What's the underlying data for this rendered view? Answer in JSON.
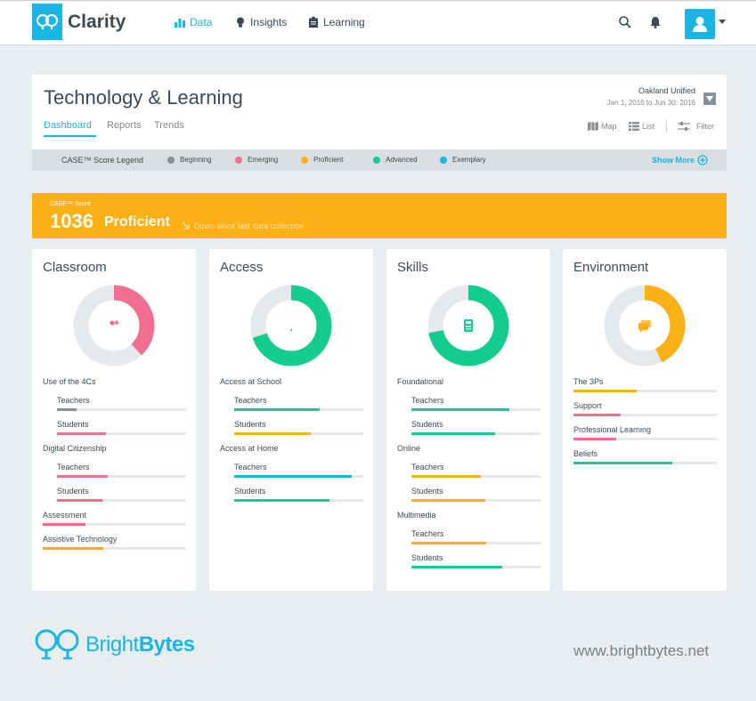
{
  "app": {
    "name": "Clarity",
    "colors": {
      "accent": "#1ab6e3",
      "orange": "#fbb015",
      "pink": "#f06f8e",
      "green": "#14cc8f",
      "gray": "#8a9196"
    }
  },
  "nav": {
    "items": [
      {
        "label": "Data",
        "icon": "bar-chart-icon",
        "active": true
      },
      {
        "label": "Insights",
        "icon": "lightbulb-icon",
        "active": false
      },
      {
        "label": "Learning",
        "icon": "clipboard-icon",
        "active": false
      }
    ],
    "search_icon": "search-icon",
    "notifications_icon": "bell-icon",
    "user_icon": "user-icon"
  },
  "header": {
    "title": "Technology & Learning",
    "district": "Oakland Unified",
    "date_range": "Jan 1, 2016 to Jun 30, 2016",
    "tabs": [
      "Dashboard",
      "Reports",
      "Trends"
    ],
    "active_tab": "Dashboard",
    "views": {
      "map": "Map",
      "list": "List",
      "filter": "Filter"
    }
  },
  "legend": {
    "title": "CASE™ Score Legend",
    "items": [
      {
        "label": "Beginning",
        "color": "#8a9196"
      },
      {
        "label": "Emerging",
        "color": "#f06f8e"
      },
      {
        "label": "Proficient",
        "color": "#fbb015"
      },
      {
        "label": "Advanced",
        "color": "#14cc8f"
      },
      {
        "label": "Exemplary",
        "color": "#1ab6e3"
      }
    ],
    "show_more": "Show More"
  },
  "score": {
    "label": "CASE™ Score",
    "value": "1036",
    "level": "Proficient",
    "trend": "Down since last data collection"
  },
  "cards": [
    {
      "title": "Classroom",
      "icon": "people-icon",
      "color": "#f06f8e",
      "donut_fraction": 0.38,
      "rows": [
        {
          "type": "header",
          "label": "Use of the 4Cs"
        },
        {
          "type": "bar",
          "label": "Teachers",
          "value": 0.15,
          "color": "#8a9196"
        },
        {
          "type": "bar",
          "label": "Students",
          "value": 0.38,
          "color": "#f06f8e"
        },
        {
          "type": "header",
          "label": "Digital Citizenship"
        },
        {
          "type": "bar",
          "label": "Teachers",
          "value": 0.39,
          "color": "#f06f8e"
        },
        {
          "type": "bar",
          "label": "Students",
          "value": 0.35,
          "color": "#f06f8e"
        },
        {
          "type": "topbar",
          "label": "Assessment",
          "value": 0.3,
          "color": "#f06f8e"
        },
        {
          "type": "topbar",
          "label": "Assistive Technology",
          "value": 0.42,
          "color": "#fbb015"
        }
      ]
    },
    {
      "title": "Access",
      "icon": "wifi-icon",
      "color": "#14cc8f",
      "donut_fraction": 0.7,
      "rows": [
        {
          "type": "header",
          "label": "Access at School"
        },
        {
          "type": "bar",
          "label": "Teachers",
          "value": 0.66,
          "color": "#14cc8f"
        },
        {
          "type": "bar",
          "label": "Students",
          "value": 0.59,
          "color": "#fbb015"
        },
        {
          "type": "header",
          "label": "Access at Home"
        },
        {
          "type": "bar",
          "label": "Teachers",
          "value": 0.91,
          "color": "#1ab6e3"
        },
        {
          "type": "bar",
          "label": "Students",
          "value": 0.74,
          "color": "#14cc8f"
        }
      ]
    },
    {
      "title": "Skills",
      "icon": "calculator-icon",
      "color": "#14cc8f",
      "donut_fraction": 0.72,
      "rows": [
        {
          "type": "header",
          "label": "Foundational"
        },
        {
          "type": "bar",
          "label": "Teachers",
          "value": 0.76,
          "color": "#14cc8f"
        },
        {
          "type": "bar",
          "label": "Students",
          "value": 0.65,
          "color": "#14cc8f"
        },
        {
          "type": "header",
          "label": "Online"
        },
        {
          "type": "bar",
          "label": "Teachers",
          "value": 0.54,
          "color": "#fbb015"
        },
        {
          "type": "bar",
          "label": "Students",
          "value": 0.57,
          "color": "#fbb015"
        },
        {
          "type": "header",
          "label": "Multimedia"
        },
        {
          "type": "bar",
          "label": "Teachers",
          "value": 0.58,
          "color": "#fbb015"
        },
        {
          "type": "bar",
          "label": "Students",
          "value": 0.7,
          "color": "#14cc8f"
        }
      ]
    },
    {
      "title": "Environment",
      "icon": "chat-bubbles-icon",
      "color": "#fbb015",
      "donut_fraction": 0.43,
      "rows": [
        {
          "type": "topbar",
          "label": "The 3Ps",
          "value": 0.44,
          "color": "#fbb015"
        },
        {
          "type": "topbar",
          "label": "Support",
          "value": 0.33,
          "color": "#f06f8e"
        },
        {
          "type": "topbar",
          "label": "Professional Learning",
          "value": 0.3,
          "color": "#f06f8e"
        },
        {
          "type": "topbar",
          "label": "Beliefs",
          "value": 0.69,
          "color": "#14cc8f"
        }
      ]
    }
  ],
  "footer": {
    "brand_part1": "Bright",
    "brand_part2": "Bytes",
    "url": "www.brightbytes.net"
  }
}
